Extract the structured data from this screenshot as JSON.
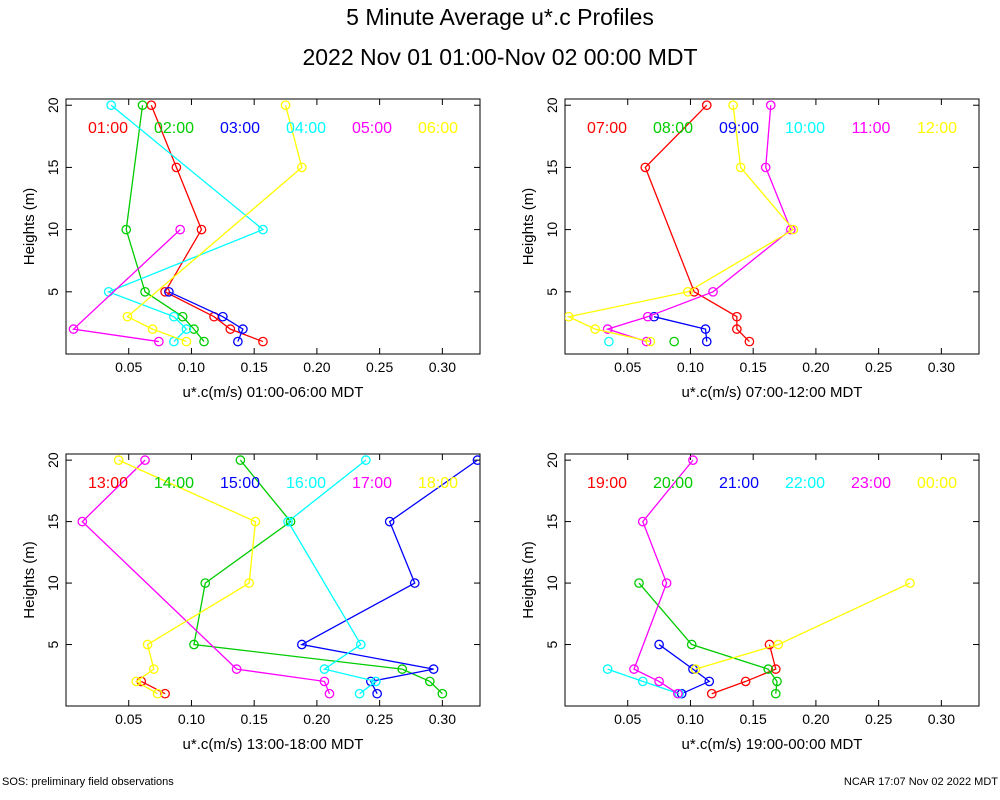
{
  "title": "5 Minute Average u*.c Profiles",
  "subtitle": "2022 Nov 01 01:00-Nov 02 00:00 MDT",
  "footer_left": "SOS: preliminary field observations",
  "footer_right": "NCAR 17:07 Nov 02 2022 MDT",
  "colors": [
    "#ff0000",
    "#00cc00",
    "#0000ff",
    "#00ffff",
    "#ff00ff",
    "#ffff00"
  ],
  "chart_data": [
    {
      "type": "scatter",
      "xlabel": "u*.c(m/s) 01:00-06:00 MDT",
      "ylabel": "Heights (m)",
      "xlim": [
        0.0,
        0.33
      ],
      "ylim": [
        0,
        20.5
      ],
      "xticks": [
        "0.05",
        "0.10",
        "0.15",
        "0.20",
        "0.25",
        "0.30"
      ],
      "yticks": [
        "5",
        "10",
        "15",
        "20"
      ],
      "series": [
        {
          "name": "01:00",
          "points": [
            [
              0.157,
              1
            ],
            [
              0.131,
              2
            ],
            [
              0.118,
              3
            ],
            [
              0.079,
              5
            ],
            [
              0.108,
              10
            ],
            [
              0.088,
              15
            ],
            [
              0.068,
              20
            ]
          ]
        },
        {
          "name": "02:00",
          "points": [
            [
              0.11,
              1
            ],
            [
              0.102,
              2
            ],
            [
              0.093,
              3
            ],
            [
              0.063,
              5
            ],
            [
              0.048,
              10
            ],
            [
              0.061,
              20
            ]
          ]
        },
        {
          "name": "03:00",
          "points": [
            [
              0.137,
              1
            ],
            [
              0.141,
              2
            ],
            [
              0.125,
              3
            ],
            [
              0.082,
              5
            ]
          ]
        },
        {
          "name": "04:00",
          "points": [
            [
              0.086,
              1
            ],
            [
              0.096,
              2
            ],
            [
              0.086,
              3
            ],
            [
              0.034,
              5
            ],
            [
              0.157,
              10
            ],
            [
              0.036,
              20
            ]
          ]
        },
        {
          "name": "05:00",
          "points": [
            [
              0.074,
              1
            ],
            [
              0.006,
              2
            ],
            [
              0.091,
              10
            ]
          ]
        },
        {
          "name": "06:00",
          "points": [
            [
              0.096,
              1
            ],
            [
              0.069,
              2
            ],
            [
              0.049,
              3
            ],
            [
              0.188,
              15
            ],
            [
              0.175,
              20
            ]
          ]
        }
      ]
    },
    {
      "type": "scatter",
      "xlabel": "u*.c(m/s) 07:00-12:00 MDT",
      "ylabel": "Heights (m)",
      "xlim": [
        0.0,
        0.33
      ],
      "ylim": [
        0,
        20.5
      ],
      "xticks": [
        "0.05",
        "0.10",
        "0.15",
        "0.20",
        "0.25",
        "0.30"
      ],
      "yticks": [
        "5",
        "10",
        "15",
        "20"
      ],
      "series": [
        {
          "name": "07:00",
          "points": [
            [
              0.147,
              1
            ],
            [
              0.137,
              2
            ],
            [
              0.137,
              3
            ],
            [
              0.103,
              5
            ],
            [
              0.064,
              15
            ],
            [
              0.113,
              20
            ]
          ]
        },
        {
          "name": "08:00",
          "points": [
            [
              0.087,
              1
            ]
          ]
        },
        {
          "name": "09:00",
          "points": [
            [
              0.113,
              1
            ],
            [
              0.112,
              2
            ],
            [
              0.071,
              3
            ]
          ]
        },
        {
          "name": "10:00",
          "points": [
            [
              0.035,
              1
            ]
          ]
        },
        {
          "name": "11:00",
          "points": [
            [
              0.065,
              1
            ],
            [
              0.034,
              2
            ],
            [
              0.066,
              3
            ],
            [
              0.118,
              5
            ],
            [
              0.18,
              10
            ],
            [
              0.16,
              15
            ],
            [
              0.164,
              20
            ]
          ]
        },
        {
          "name": "12:00",
          "points": [
            [
              0.068,
              1
            ],
            [
              0.024,
              2
            ],
            [
              0.003,
              3
            ],
            [
              0.098,
              5
            ],
            [
              0.182,
              10
            ],
            [
              0.14,
              15
            ],
            [
              0.134,
              20
            ]
          ]
        }
      ]
    },
    {
      "type": "scatter",
      "xlabel": "u*.c(m/s) 13:00-18:00 MDT",
      "ylabel": "Heights (m)",
      "xlim": [
        0.0,
        0.33
      ],
      "ylim": [
        0,
        20.5
      ],
      "xticks": [
        "0.05",
        "0.10",
        "0.15",
        "0.20",
        "0.25",
        "0.30"
      ],
      "yticks": [
        "5",
        "10",
        "15",
        "20"
      ],
      "series": [
        {
          "name": "13:00",
          "points": [
            [
              0.079,
              1
            ],
            [
              0.06,
              2
            ]
          ]
        },
        {
          "name": "14:00",
          "points": [
            [
              0.3,
              1
            ],
            [
              0.29,
              2
            ],
            [
              0.268,
              3
            ],
            [
              0.102,
              5
            ],
            [
              0.111,
              10
            ],
            [
              0.179,
              15
            ],
            [
              0.139,
              20
            ]
          ]
        },
        {
          "name": "15:00",
          "points": [
            [
              0.248,
              1
            ],
            [
              0.243,
              2
            ],
            [
              0.293,
              3
            ],
            [
              0.188,
              5
            ],
            [
              0.278,
              10
            ],
            [
              0.258,
              15
            ],
            [
              0.328,
              20
            ]
          ]
        },
        {
          "name": "16:00",
          "points": [
            [
              0.234,
              1
            ],
            [
              0.247,
              2
            ],
            [
              0.206,
              3
            ],
            [
              0.235,
              5
            ],
            [
              0.177,
              15
            ],
            [
              0.239,
              20
            ]
          ]
        },
        {
          "name": "17:00",
          "points": [
            [
              0.21,
              1
            ],
            [
              0.206,
              2
            ],
            [
              0.136,
              3
            ],
            [
              0.013,
              15
            ],
            [
              0.063,
              20
            ]
          ]
        },
        {
          "name": "18:00",
          "points": [
            [
              0.073,
              1
            ],
            [
              0.056,
              2
            ],
            [
              0.07,
              3
            ],
            [
              0.065,
              5
            ],
            [
              0.146,
              10
            ],
            [
              0.151,
              15
            ],
            [
              0.042,
              20
            ]
          ]
        }
      ]
    },
    {
      "type": "scatter",
      "xlabel": "u*.c(m/s) 19:00-00:00 MDT",
      "ylabel": "Heights (m)",
      "xlim": [
        0.0,
        0.33
      ],
      "ylim": [
        0,
        20.5
      ],
      "xticks": [
        "0.05",
        "0.10",
        "0.15",
        "0.20",
        "0.25",
        "0.30"
      ],
      "yticks": [
        "5",
        "10",
        "15",
        "20"
      ],
      "series": [
        {
          "name": "19:00",
          "points": [
            [
              0.117,
              1
            ],
            [
              0.144,
              2
            ],
            [
              0.168,
              3
            ],
            [
              0.163,
              5
            ]
          ]
        },
        {
          "name": "20:00",
          "points": [
            [
              0.168,
              1
            ],
            [
              0.169,
              2
            ],
            [
              0.162,
              3
            ],
            [
              0.101,
              5
            ],
            [
              0.059,
              10
            ]
          ]
        },
        {
          "name": "21:00",
          "points": [
            [
              0.093,
              1
            ],
            [
              0.115,
              2
            ],
            [
              0.102,
              3
            ],
            [
              0.075,
              5
            ]
          ]
        },
        {
          "name": "22:00",
          "points": [
            [
              0.091,
              1
            ],
            [
              0.062,
              2
            ],
            [
              0.034,
              3
            ]
          ]
        },
        {
          "name": "23:00",
          "points": [
            [
              0.09,
              1
            ],
            [
              0.075,
              2
            ],
            [
              0.055,
              3
            ],
            [
              0.081,
              10
            ],
            [
              0.062,
              15
            ],
            [
              0.102,
              20
            ]
          ]
        },
        {
          "name": "00:00",
          "points": [
            [
              0.104,
              3
            ],
            [
              0.17,
              5
            ],
            [
              0.275,
              10
            ]
          ]
        }
      ]
    }
  ]
}
